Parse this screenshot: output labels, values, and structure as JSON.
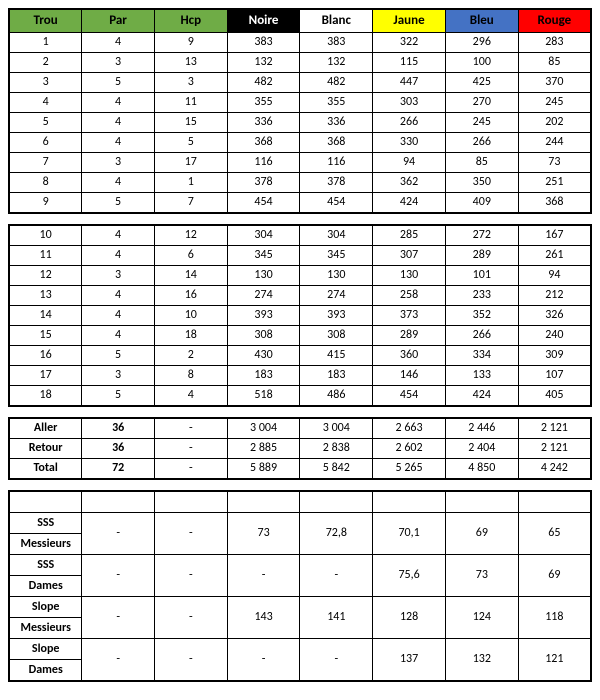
{
  "headers": {
    "trou": "Trou",
    "par": "Par",
    "hcp": "Hcp",
    "tees": [
      "Noire",
      "Blanc",
      "Jaune",
      "Bleu",
      "Rouge"
    ]
  },
  "colors": {
    "green": "#6fac46",
    "noire_bg": "#000000",
    "noire_fg": "#ffffff",
    "blanc": "#ffffff",
    "jaune": "#ffff00",
    "bleu": "#4472c4",
    "rouge": "#ff0000"
  },
  "front": [
    {
      "hole": "1",
      "par": "4",
      "hcp": "9",
      "d": [
        "383",
        "383",
        "322",
        "296",
        "283"
      ]
    },
    {
      "hole": "2",
      "par": "3",
      "hcp": "13",
      "d": [
        "132",
        "132",
        "115",
        "100",
        "85"
      ]
    },
    {
      "hole": "3",
      "par": "5",
      "hcp": "3",
      "d": [
        "482",
        "482",
        "447",
        "425",
        "370"
      ]
    },
    {
      "hole": "4",
      "par": "4",
      "hcp": "11",
      "d": [
        "355",
        "355",
        "303",
        "270",
        "245"
      ]
    },
    {
      "hole": "5",
      "par": "4",
      "hcp": "15",
      "d": [
        "336",
        "336",
        "266",
        "245",
        "202"
      ]
    },
    {
      "hole": "6",
      "par": "4",
      "hcp": "5",
      "d": [
        "368",
        "368",
        "330",
        "266",
        "244"
      ]
    },
    {
      "hole": "7",
      "par": "3",
      "hcp": "17",
      "d": [
        "116",
        "116",
        "94",
        "85",
        "73"
      ]
    },
    {
      "hole": "8",
      "par": "4",
      "hcp": "1",
      "d": [
        "378",
        "378",
        "362",
        "350",
        "251"
      ]
    },
    {
      "hole": "9",
      "par": "5",
      "hcp": "7",
      "d": [
        "454",
        "454",
        "424",
        "409",
        "368"
      ]
    }
  ],
  "back": [
    {
      "hole": "10",
      "par": "4",
      "hcp": "12",
      "d": [
        "304",
        "304",
        "285",
        "272",
        "167"
      ]
    },
    {
      "hole": "11",
      "par": "4",
      "hcp": "6",
      "d": [
        "345",
        "345",
        "307",
        "289",
        "261"
      ]
    },
    {
      "hole": "12",
      "par": "3",
      "hcp": "14",
      "d": [
        "130",
        "130",
        "130",
        "101",
        "94"
      ]
    },
    {
      "hole": "13",
      "par": "4",
      "hcp": "16",
      "d": [
        "274",
        "274",
        "258",
        "233",
        "212"
      ]
    },
    {
      "hole": "14",
      "par": "4",
      "hcp": "10",
      "d": [
        "393",
        "393",
        "373",
        "352",
        "326"
      ]
    },
    {
      "hole": "15",
      "par": "4",
      "hcp": "18",
      "d": [
        "308",
        "308",
        "289",
        "266",
        "240"
      ]
    },
    {
      "hole": "16",
      "par": "5",
      "hcp": "2",
      "d": [
        "430",
        "415",
        "360",
        "334",
        "309"
      ]
    },
    {
      "hole": "17",
      "par": "3",
      "hcp": "8",
      "d": [
        "183",
        "183",
        "146",
        "133",
        "107"
      ]
    },
    {
      "hole": "18",
      "par": "5",
      "hcp": "4",
      "d": [
        "518",
        "486",
        "454",
        "424",
        "405"
      ]
    }
  ],
  "totals": [
    {
      "label": "Aller",
      "par": "36",
      "hcp": "-",
      "d": [
        "3 004",
        "3 004",
        "2 663",
        "2 446",
        "2 121"
      ]
    },
    {
      "label": "Retour",
      "par": "36",
      "hcp": "-",
      "d": [
        "2 885",
        "2 838",
        "2 602",
        "2 404",
        "2 121"
      ]
    },
    {
      "label": "Total",
      "par": "72",
      "hcp": "-",
      "d": [
        "5 889",
        "5 842",
        "5 265",
        "4 850",
        "4 242"
      ]
    }
  ],
  "summary": [
    {
      "labels": [
        "SSS",
        "Messieurs"
      ],
      "par": "-",
      "hcp": "-",
      "d": [
        "73",
        "72,8",
        "70,1",
        "69",
        "65"
      ]
    },
    {
      "labels": [
        "SSS",
        "Dames"
      ],
      "par": "-",
      "hcp": "-",
      "d": [
        "-",
        "-",
        "75,6",
        "73",
        "69"
      ]
    },
    {
      "labels": [
        "Slope",
        "Messieurs"
      ],
      "par": "-",
      "hcp": "-",
      "d": [
        "143",
        "141",
        "128",
        "124",
        "118"
      ]
    },
    {
      "labels": [
        "Slope",
        "Dames"
      ],
      "par": "-",
      "hcp": "-",
      "d": [
        "-",
        "-",
        "137",
        "132",
        "121"
      ]
    }
  ]
}
